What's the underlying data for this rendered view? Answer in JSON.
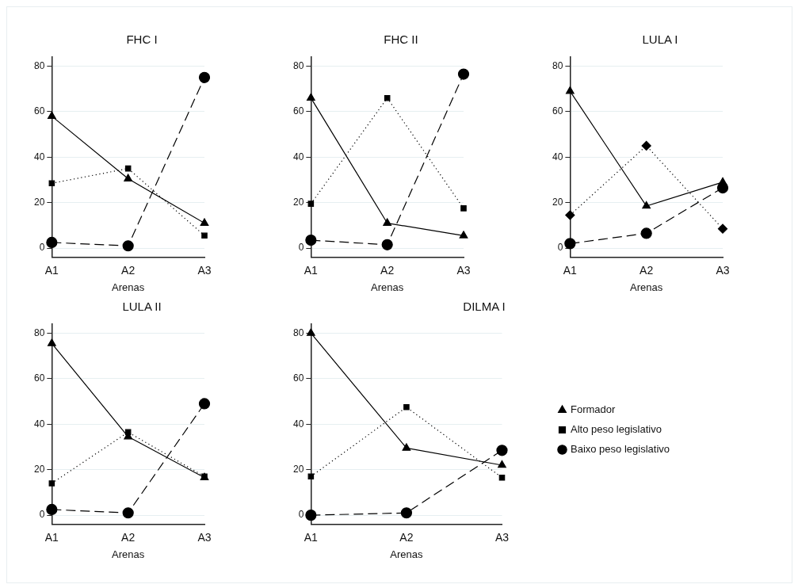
{
  "chart_data": [
    {
      "type": "line",
      "title": "FHC I",
      "xlabel": "Arenas",
      "categories": [
        "A1",
        "A2",
        "A3"
      ],
      "ylim": [
        -4,
        84
      ],
      "yticks": [
        0,
        20,
        40,
        60,
        80
      ],
      "grid": "y",
      "series": [
        {
          "color": "#000000",
          "values": [
            58,
            30.5,
            11
          ],
          "marker": "triangle",
          "line_style": "solid"
        },
        {
          "color": "#000000",
          "values": [
            28.5,
            35,
            5.5
          ],
          "marker": "square",
          "line_style": "dotted"
        },
        {
          "color": "#000000",
          "values": [
            2.5,
            1,
            75
          ],
          "marker": "circle",
          "line_style": "dashed"
        }
      ]
    },
    {
      "type": "line",
      "title": "FHC II",
      "xlabel": "Arenas",
      "categories": [
        "A1",
        "A2",
        "A3"
      ],
      "ylim": [
        -4,
        84
      ],
      "yticks": [
        0,
        20,
        40,
        60,
        80
      ],
      "grid": "y",
      "series": [
        {
          "color": "#000000",
          "values": [
            66,
            11,
            5.5
          ],
          "marker": "triangle",
          "line_style": "solid"
        },
        {
          "color": "#000000",
          "values": [
            19.5,
            66,
            17.5
          ],
          "marker": "square",
          "line_style": "dotted"
        },
        {
          "color": "#000000",
          "values": [
            3.5,
            1.5,
            76.5
          ],
          "marker": "circle",
          "line_style": "dashed"
        }
      ]
    },
    {
      "type": "line",
      "title": "LULA I",
      "xlabel": "Arenas",
      "categories": [
        "A1",
        "A2",
        "A3"
      ],
      "ylim": [
        -4,
        84
      ],
      "yticks": [
        0,
        20,
        40,
        60,
        80
      ],
      "grid": "y",
      "series": [
        {
          "color": "#000000",
          "values": [
            69,
            18.5,
            29
          ],
          "marker": "triangle",
          "line_style": "solid"
        },
        {
          "color": "#000000",
          "values": [
            14.5,
            45,
            8.5
          ],
          "marker": "diamond",
          "line_style": "dotted"
        },
        {
          "color": "#000000",
          "values": [
            2,
            6.5,
            26.5
          ],
          "marker": "circle",
          "line_style": "dashed"
        }
      ]
    },
    {
      "type": "line",
      "title": "LULA II",
      "xlabel": "Arenas",
      "categories": [
        "A1",
        "A2",
        "A3"
      ],
      "ylim": [
        -4,
        84
      ],
      "yticks": [
        0,
        20,
        40,
        60,
        80
      ],
      "grid": "y",
      "series": [
        {
          "color": "#000000",
          "values": [
            75.5,
            34.5,
            16.5
          ],
          "marker": "triangle",
          "line_style": "solid"
        },
        {
          "color": "#000000",
          "values": [
            14,
            36.5,
            17
          ],
          "marker": "square",
          "line_style": "dotted"
        },
        {
          "color": "#000000",
          "values": [
            2.5,
            1,
            49
          ],
          "marker": "circle",
          "line_style": "dashed"
        }
      ]
    },
    {
      "type": "line",
      "title": "DILMA I",
      "xlabel": "Arenas",
      "categories": [
        "A1",
        "A2",
        "A3"
      ],
      "ylim": [
        -4,
        84
      ],
      "yticks": [
        0,
        20,
        40,
        60,
        80
      ],
      "grid": "y",
      "legend": "right",
      "series": [
        {
          "name": "Formador",
          "color": "#000000",
          "values": [
            80,
            29.5,
            22
          ],
          "marker": "triangle",
          "line_style": "solid"
        },
        {
          "name": "Alto peso legislativo",
          "color": "#000000",
          "values": [
            17,
            47.5,
            16.5
          ],
          "marker": "square",
          "line_style": "dotted"
        },
        {
          "name": "Baixo peso legislativo",
          "color": "#000000",
          "values": [
            0,
            1,
            28.5
          ],
          "marker": "circle",
          "line_style": "dashed"
        }
      ]
    }
  ]
}
